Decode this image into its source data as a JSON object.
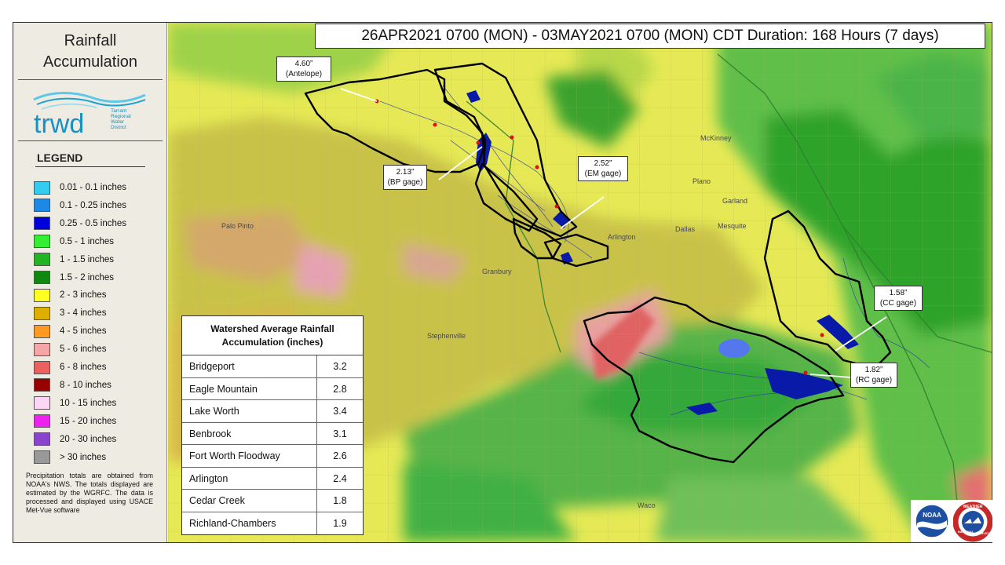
{
  "sidebar": {
    "title_line1": "Rainfall",
    "title_line2": "Accumulation",
    "logo_text": "trwd",
    "logo_org_line1": "Tarrant",
    "logo_org_line2": "Regional",
    "logo_org_line3": "Water",
    "logo_org_line4": "District",
    "legend_title": "LEGEND",
    "legend": [
      {
        "label": "0.01 - 0.1 inches",
        "color": "#33ccee"
      },
      {
        "label": "0.1 - 0.25 inches",
        "color": "#1e88e5"
      },
      {
        "label": "0.25 - 0.5 inches",
        "color": "#0000dd"
      },
      {
        "label": "0.5 - 1 inches",
        "color": "#33ee33"
      },
      {
        "label": "1 - 1.5 inches",
        "color": "#22b422"
      },
      {
        "label": "1.5 - 2 inches",
        "color": "#118811"
      },
      {
        "label": "2 - 3 inches",
        "color": "#ffff22"
      },
      {
        "label": "3 - 4 inches",
        "color": "#ddb000"
      },
      {
        "label": "4 - 5 inches",
        "color": "#ff9922"
      },
      {
        "label": "5 - 6 inches",
        "color": "#f4a5a5"
      },
      {
        "label": "6 - 8 inches",
        "color": "#ec6060"
      },
      {
        "label": "8 - 10 inches",
        "color": "#990000"
      },
      {
        "label": "10 - 15 inches",
        "color": "#fdd5f5"
      },
      {
        "label": "15 - 20 inches",
        "color": "#ee22ee"
      },
      {
        "label": "20 - 30 inches",
        "color": "#8844cc"
      },
      {
        "label": "> 30 inches",
        "color": "#999999"
      }
    ],
    "note": "Precipitation totals are obtained from NOAA's NWS. The totals displayed are estimated by the WGRFC. The data is processed and displayed using USACE Met-Vue software"
  },
  "banner": "26APR2021 0700 (MON) - 03MAY2021 0700 (MON) CDT Duration: 168 Hours (7 days)",
  "callouts": [
    {
      "value": "4.60”",
      "label": "(Antelope)"
    },
    {
      "value": "2.13”",
      "label": "(BP gage)"
    },
    {
      "value": "2.52”",
      "label": "(EM gage)"
    },
    {
      "value": "1.58”",
      "label": "(CC gage)"
    },
    {
      "value": "1.82”",
      "label": "(RC gage)"
    }
  ],
  "watershed_table": {
    "title_line1": "Watershed Average Rainfall",
    "title_line2": "Accumulation (inches)",
    "rows": [
      {
        "name": "Bridgeport",
        "value": "3.2"
      },
      {
        "name": "Eagle Mountain",
        "value": "2.8"
      },
      {
        "name": "Lake Worth",
        "value": "3.4"
      },
      {
        "name": "Benbrook",
        "value": "3.1"
      },
      {
        "name": "Fort Worth  Floodway",
        "value": "2.6"
      },
      {
        "name": "Arlington",
        "value": "2.4"
      },
      {
        "name": "Cedar Creek",
        "value": "1.8"
      },
      {
        "name": "Richland-Chambers",
        "value": "1.9"
      }
    ]
  },
  "map_labels": {
    "plano": "Plano",
    "garland": "Garland",
    "dallas": "Dallas",
    "arlington": "Arlington",
    "waco": "Waco",
    "mesquite": "Mesquite",
    "granbury": "Granbury",
    "stephenville": "Stephenville",
    "mckinney": "McKinney",
    "palo_pinto": "Palo Pinto"
  },
  "logos": {
    "noaa": "NOAA",
    "nws_top": "WEATHER",
    "nws_left": "NATIONAL",
    "nws_right": "SERVICE"
  }
}
